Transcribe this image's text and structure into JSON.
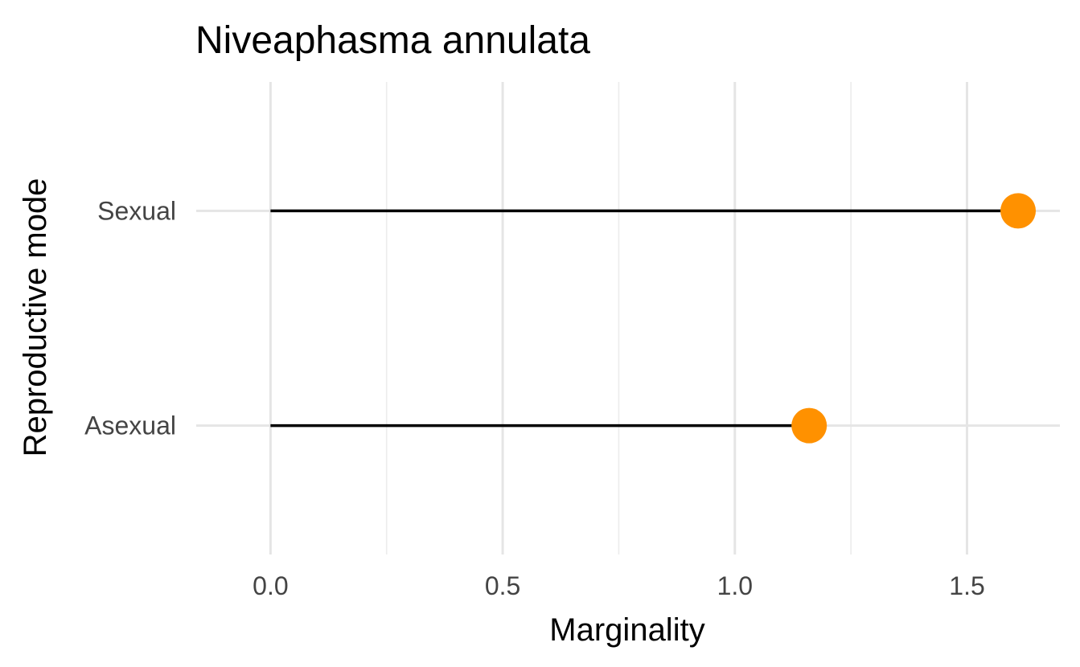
{
  "chart_data": {
    "type": "lollipop",
    "title": "Niveaphasma annulata",
    "xlabel": "Marginality",
    "ylabel": "Reproductive mode",
    "xlim": [
      -0.16,
      1.7
    ],
    "x_ticks": [
      0.0,
      0.5,
      1.0,
      1.5
    ],
    "x_tick_labels": [
      "0.0",
      "0.5",
      "1.0",
      "1.5"
    ],
    "x_minor_ticks": [
      0.25,
      0.75,
      1.25
    ],
    "categories": [
      "Sexual",
      "Asexual"
    ],
    "values": [
      1.61,
      1.16
    ],
    "segment_start": 0,
    "point_color": "#FF9100",
    "line_color": "#000000",
    "grid": true,
    "legend": "none"
  }
}
